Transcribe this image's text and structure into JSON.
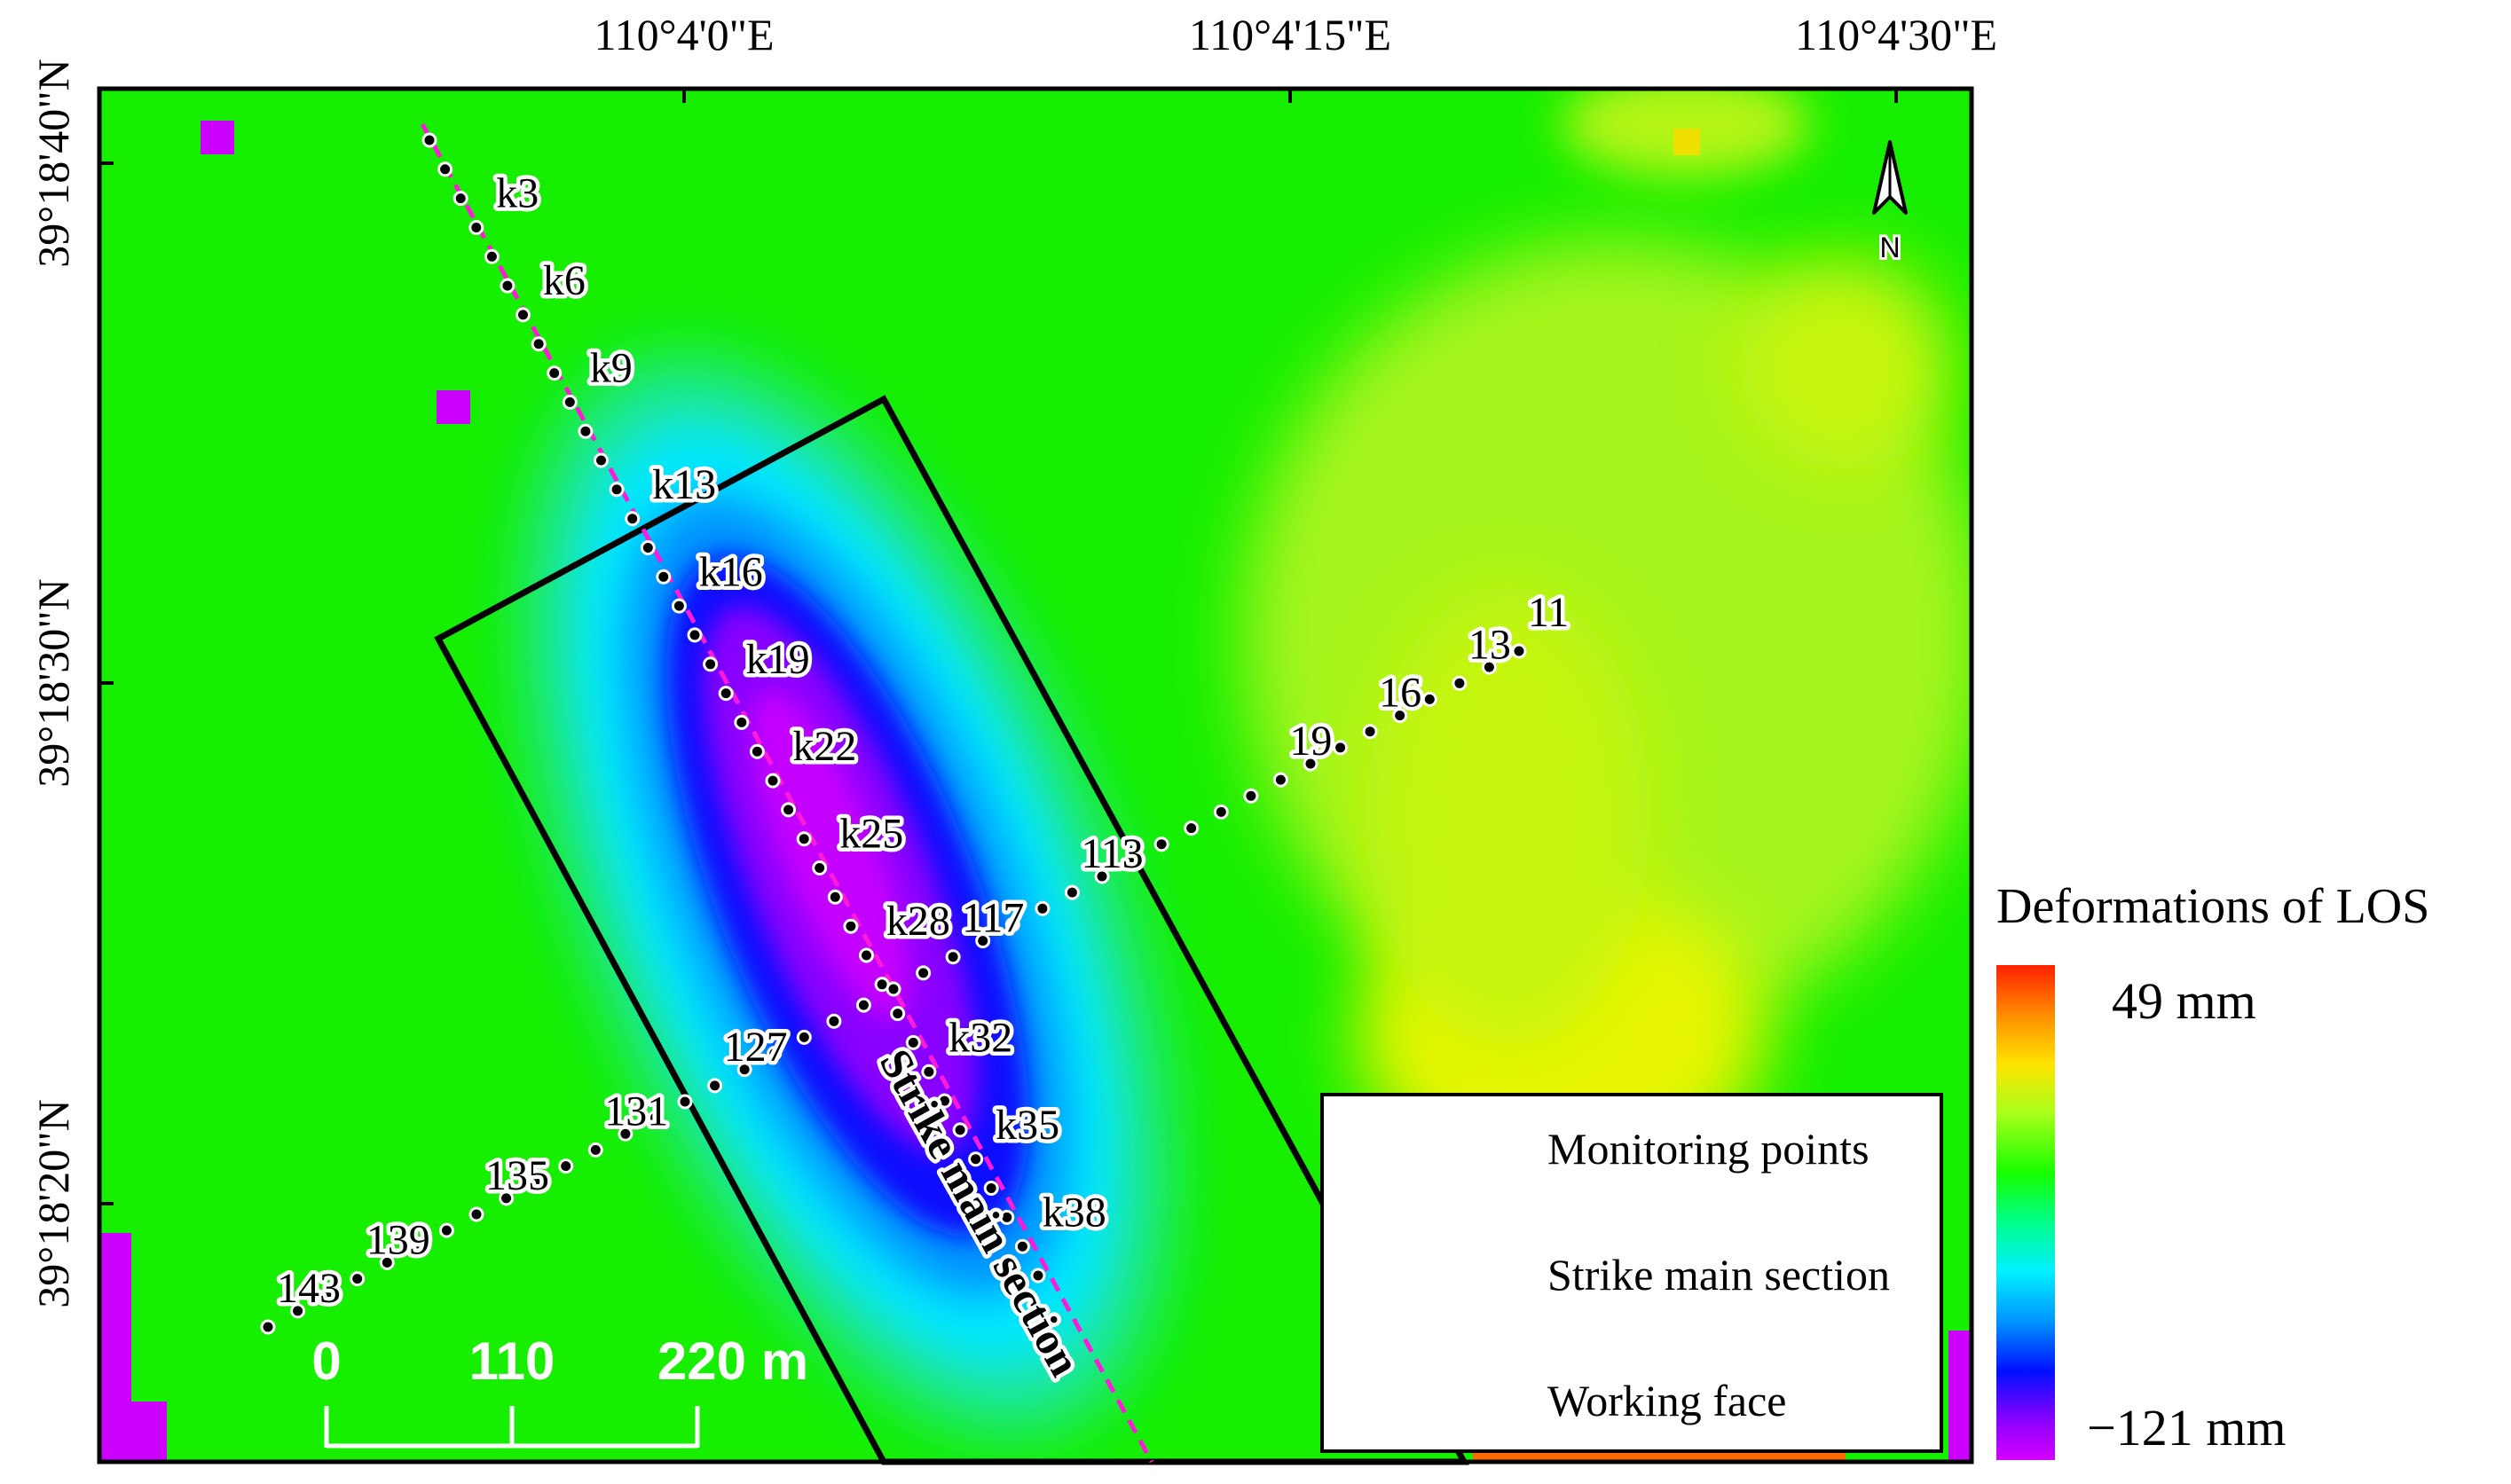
{
  "map": {
    "x_ticks": [
      "110°4'0\"E",
      "110°4'15\"E",
      "110°4'30\"E"
    ],
    "y_ticks": [
      "39°18'40\"N",
      "39°18'30\"N",
      "39°18'20\"N"
    ],
    "north_label": "N",
    "strike_label": "Strike main section",
    "strike_points": [
      "k3",
      "k6",
      "k9",
      "k13",
      "k16",
      "k19",
      "k22",
      "k25",
      "k28",
      "k32",
      "k35",
      "k38"
    ],
    "dip_points": [
      "11",
      "13",
      "16",
      "19",
      "113",
      "117",
      "127",
      "131",
      "135",
      "139",
      "143"
    ],
    "scale_bar": {
      "labels": [
        "0",
        "110",
        "220 m"
      ]
    }
  },
  "legend": {
    "monitoring_points": "Monitoring points",
    "strike_section": "Strike main section",
    "working_face": "Working face"
  },
  "colorbar": {
    "title": "Deformations of LOS",
    "max_label": "49 mm",
    "min_label": "−121 mm",
    "colors": [
      "#ff2000",
      "#ffe400",
      "#16ff00",
      "#00f0ff",
      "#0010ff",
      "#d400ff"
    ]
  },
  "colors": {
    "background": "#16ef00",
    "strike_line": "#ff1ad9",
    "working_face": "#000000",
    "point": "#000000"
  }
}
